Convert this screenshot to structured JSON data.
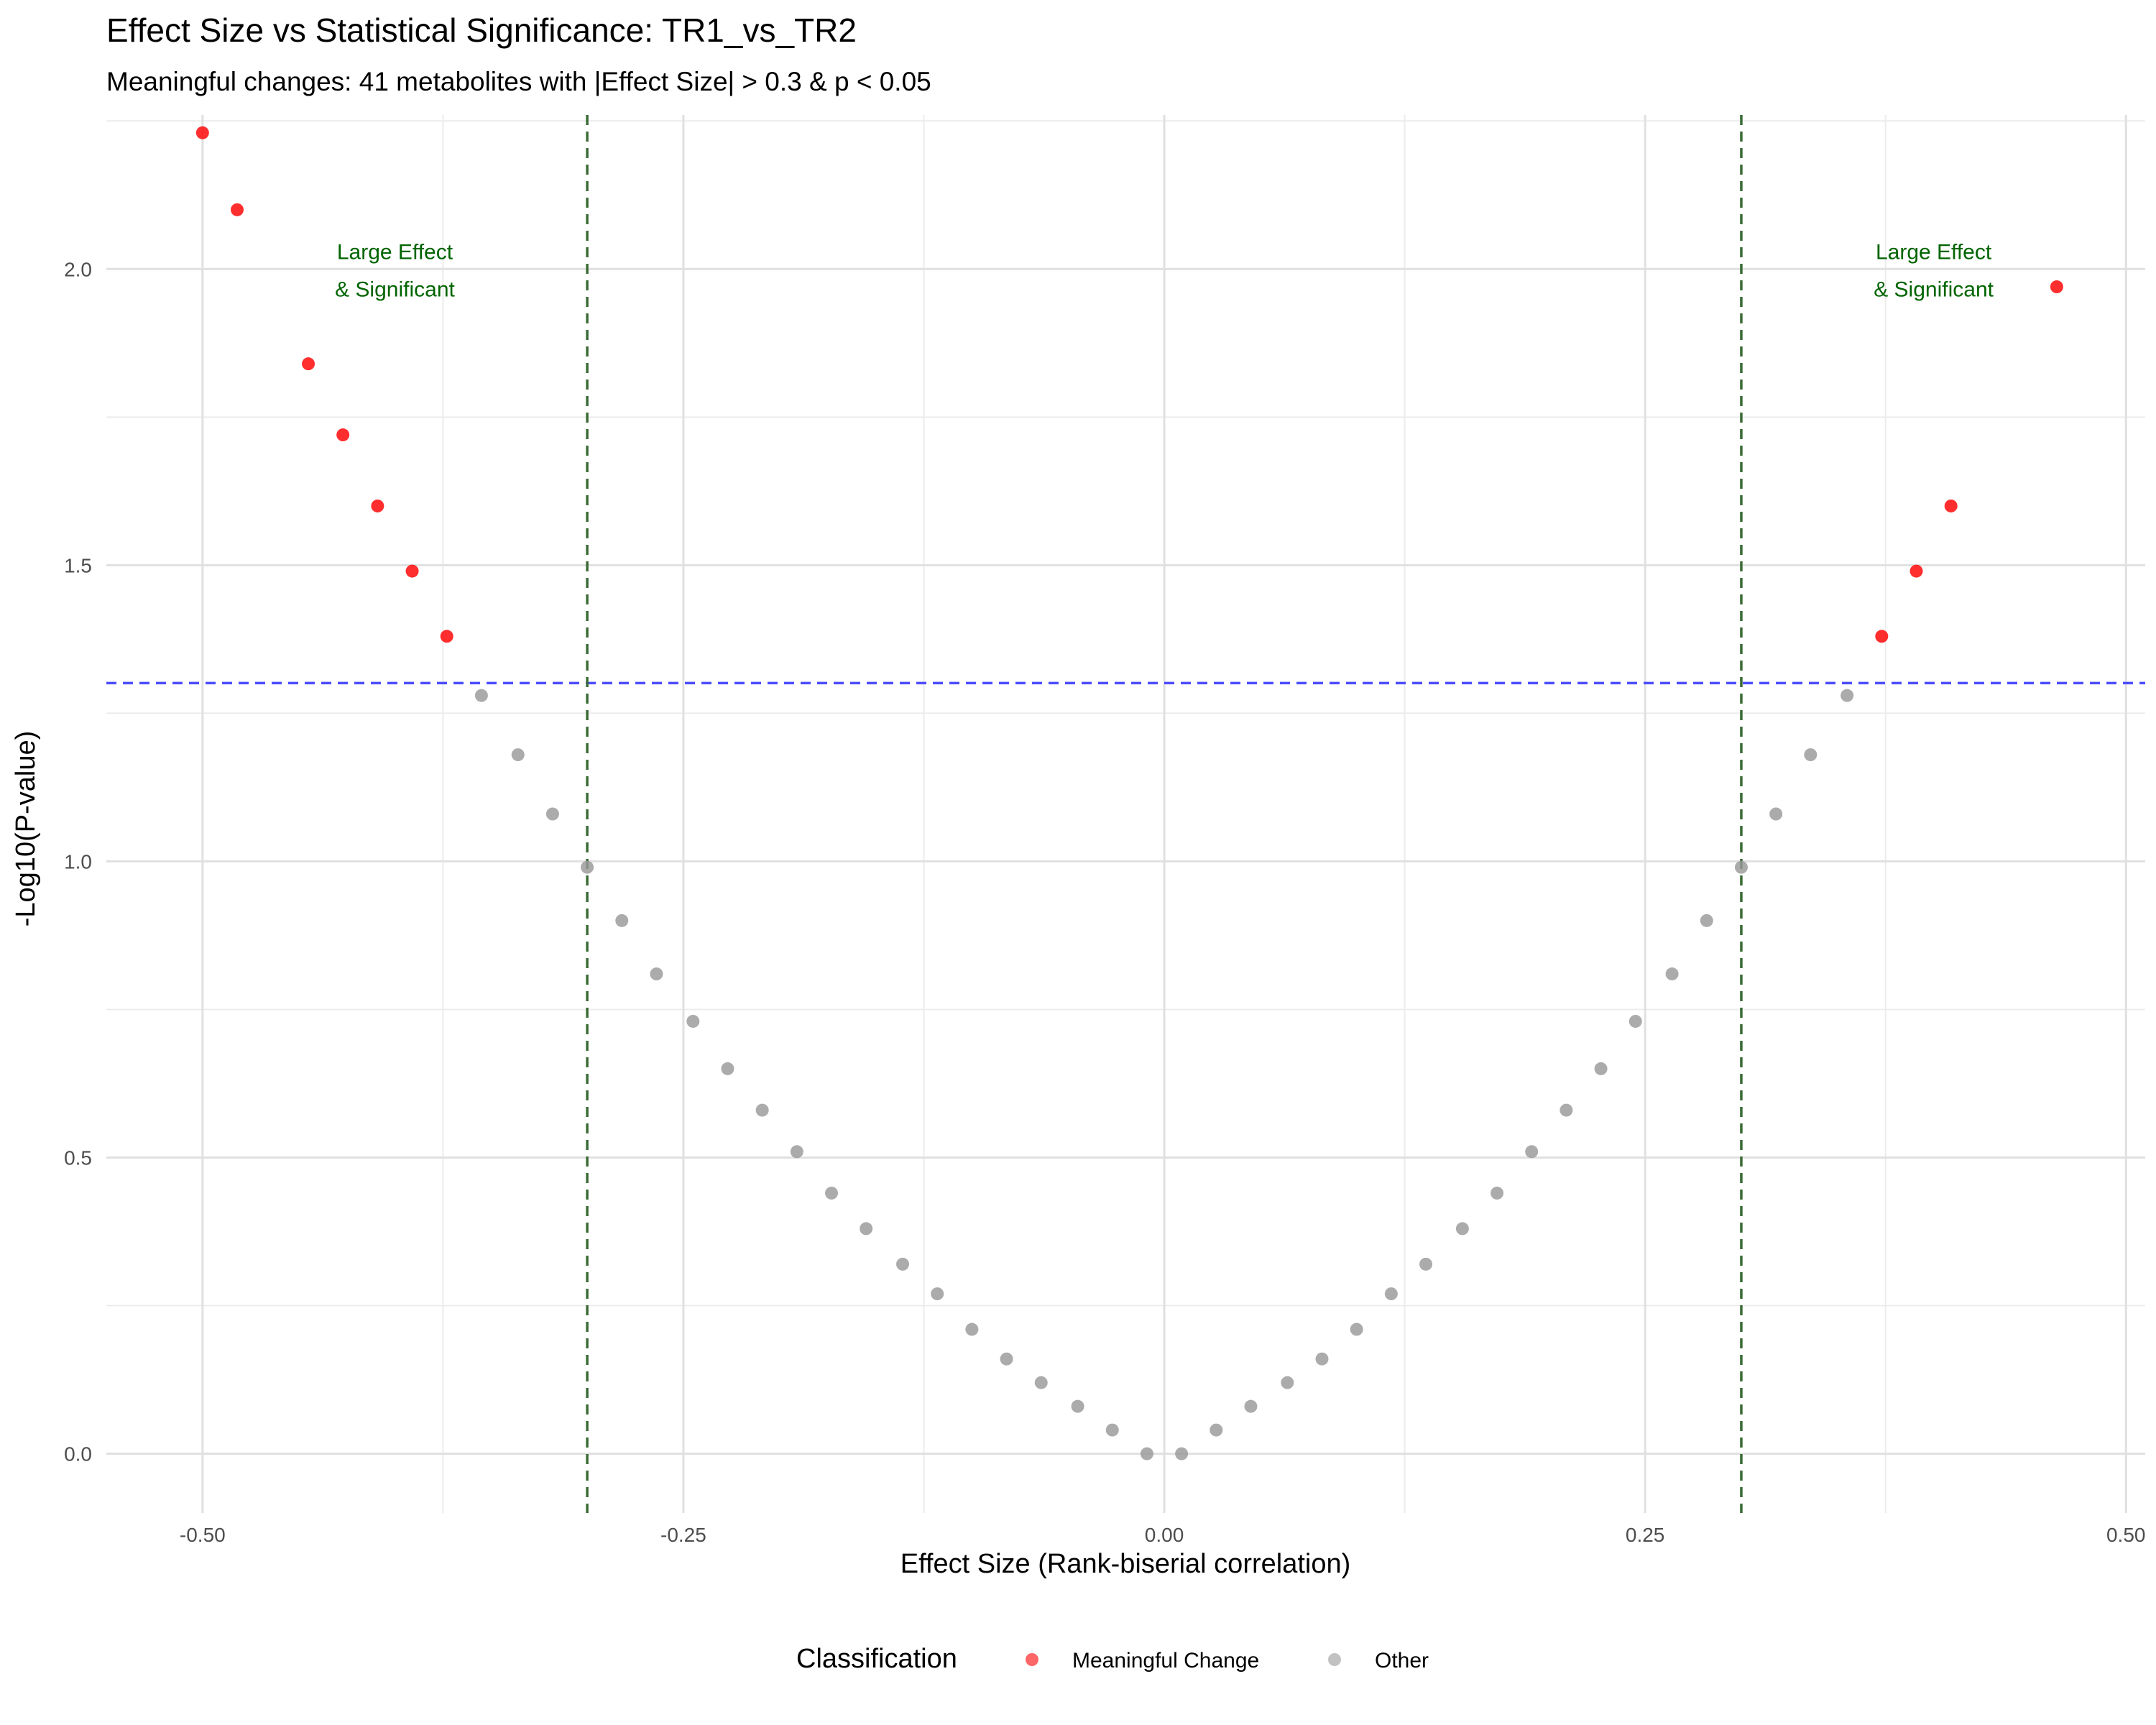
{
  "chart_data": {
    "type": "scatter",
    "title": "Effect Size vs Statistical Significance: TR1_vs_TR2",
    "subtitle": "Meaningful changes: 41 metabolites with |Effect Size| > 0.3 & p < 0.05",
    "xlabel": "Effect Size (Rank-biserial correlation)",
    "ylabel": "-Log10(P-value)",
    "xlim": [
      -0.55,
      0.51
    ],
    "ylim": [
      -0.1,
      2.26
    ],
    "x_ticks": [
      -0.5,
      -0.25,
      0.0,
      0.25,
      0.5
    ],
    "x_tick_labels": [
      "-0.50",
      "-0.25",
      "0.00",
      "0.25",
      "0.50"
    ],
    "y_ticks": [
      0.0,
      0.5,
      1.0,
      1.5,
      2.0
    ],
    "y_tick_labels": [
      "0.0",
      "0.5",
      "1.0",
      "1.5",
      "2.0"
    ],
    "grid": true,
    "thresholds": {
      "significance_line_y": 1.301,
      "effect_lines_x": [
        -0.3,
        0.3
      ],
      "significance_color": "#4d4dff",
      "effect_color": "#3a6b35"
    },
    "annotations": [
      {
        "lines": [
          "Large Effect",
          "& Significant"
        ],
        "x": -0.4,
        "y": 2.0,
        "color": "#006400"
      },
      {
        "lines": [
          "Large Effect",
          "& Significant"
        ],
        "x": 0.4,
        "y": 2.0,
        "color": "#006400"
      }
    ],
    "legend": {
      "title": "Classification",
      "position": "bottom",
      "entries": [
        {
          "label": "Meaningful Change",
          "color": "#ff0000"
        },
        {
          "label": "Other",
          "color": "#999999"
        }
      ]
    },
    "series": [
      {
        "name": "Meaningful Change",
        "color": "#ff0000",
        "points": [
          {
            "x": -0.5,
            "y": 2.23
          },
          {
            "x": -0.482,
            "y": 2.1
          },
          {
            "x": -0.445,
            "y": 1.84
          },
          {
            "x": -0.427,
            "y": 1.72
          },
          {
            "x": -0.409,
            "y": 1.6
          },
          {
            "x": -0.391,
            "y": 1.49
          },
          {
            "x": -0.373,
            "y": 1.38
          },
          {
            "x": 0.373,
            "y": 1.38
          },
          {
            "x": 0.391,
            "y": 1.49
          },
          {
            "x": 0.409,
            "y": 1.6
          },
          {
            "x": 0.464,
            "y": 1.97
          }
        ]
      },
      {
        "name": "Other",
        "color": "#999999",
        "points": [
          {
            "x": -0.355,
            "y": 1.28
          },
          {
            "x": -0.336,
            "y": 1.18
          },
          {
            "x": -0.318,
            "y": 1.08
          },
          {
            "x": -0.3,
            "y": 0.99
          },
          {
            "x": -0.282,
            "y": 0.9
          },
          {
            "x": -0.264,
            "y": 0.81
          },
          {
            "x": -0.245,
            "y": 0.73
          },
          {
            "x": -0.227,
            "y": 0.65
          },
          {
            "x": -0.209,
            "y": 0.58
          },
          {
            "x": -0.191,
            "y": 0.51
          },
          {
            "x": -0.173,
            "y": 0.44
          },
          {
            "x": -0.155,
            "y": 0.38
          },
          {
            "x": -0.136,
            "y": 0.32
          },
          {
            "x": -0.118,
            "y": 0.27
          },
          {
            "x": -0.1,
            "y": 0.21
          },
          {
            "x": -0.082,
            "y": 0.16
          },
          {
            "x": -0.064,
            "y": 0.12
          },
          {
            "x": -0.045,
            "y": 0.08
          },
          {
            "x": -0.027,
            "y": 0.04
          },
          {
            "x": -0.009,
            "y": 0.0
          },
          {
            "x": 0.009,
            "y": 0.0
          },
          {
            "x": 0.027,
            "y": 0.04
          },
          {
            "x": 0.045,
            "y": 0.08
          },
          {
            "x": 0.064,
            "y": 0.12
          },
          {
            "x": 0.082,
            "y": 0.16
          },
          {
            "x": 0.1,
            "y": 0.21
          },
          {
            "x": 0.118,
            "y": 0.27
          },
          {
            "x": 0.136,
            "y": 0.32
          },
          {
            "x": 0.155,
            "y": 0.38
          },
          {
            "x": 0.173,
            "y": 0.44
          },
          {
            "x": 0.191,
            "y": 0.51
          },
          {
            "x": 0.209,
            "y": 0.58
          },
          {
            "x": 0.227,
            "y": 0.65
          },
          {
            "x": 0.245,
            "y": 0.73
          },
          {
            "x": 0.264,
            "y": 0.81
          },
          {
            "x": 0.282,
            "y": 0.9
          },
          {
            "x": 0.3,
            "y": 0.99
          },
          {
            "x": 0.318,
            "y": 1.08
          },
          {
            "x": 0.336,
            "y": 1.18
          },
          {
            "x": 0.355,
            "y": 1.28
          }
        ]
      }
    ]
  }
}
